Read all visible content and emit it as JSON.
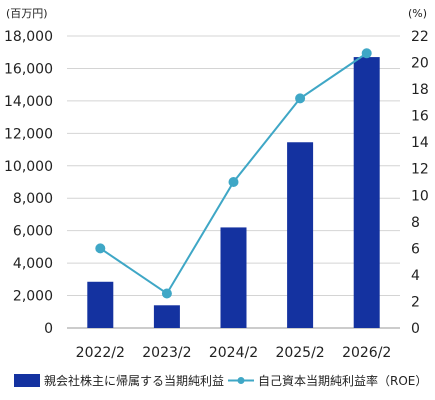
{
  "chart_data": {
    "type": "bar+line",
    "categories": [
      "2022/2",
      "2023/2",
      "2024/2",
      "2025/2",
      "2026/2"
    ],
    "left_unit": "(百万円)",
    "right_unit": "(%)",
    "left_ylim": [
      0,
      18000
    ],
    "left_ticks": [
      0,
      2000,
      4000,
      6000,
      8000,
      10000,
      12000,
      14000,
      16000,
      18000
    ],
    "left_tick_labels": [
      "0",
      "2,000",
      "4,000",
      "6,000",
      "8,000",
      "10,000",
      "12,000",
      "14,000",
      "16,000",
      "18,000"
    ],
    "right_ylim": [
      0,
      22
    ],
    "right_ticks": [
      0,
      2,
      4,
      6,
      8,
      10,
      12,
      14,
      16,
      18,
      20,
      22
    ],
    "right_tick_labels": [
      "0",
      "2",
      "4",
      "6",
      "8",
      "10",
      "12",
      "14",
      "16",
      "18",
      "20",
      "22"
    ],
    "grid": true,
    "legend_position": "bottom",
    "series": [
      {
        "name": "親会社株主に帰属する当期純利益",
        "kind": "bar",
        "axis": "left",
        "color": "#1432a0",
        "values": [
          2850,
          1400,
          6200,
          11450,
          16700
        ]
      },
      {
        "name": "自己資本当期純利益率（ROE）",
        "kind": "line",
        "axis": "right",
        "color": "#3fa7c6",
        "values": [
          6.0,
          2.6,
          11.0,
          17.3,
          20.7
        ]
      }
    ]
  }
}
